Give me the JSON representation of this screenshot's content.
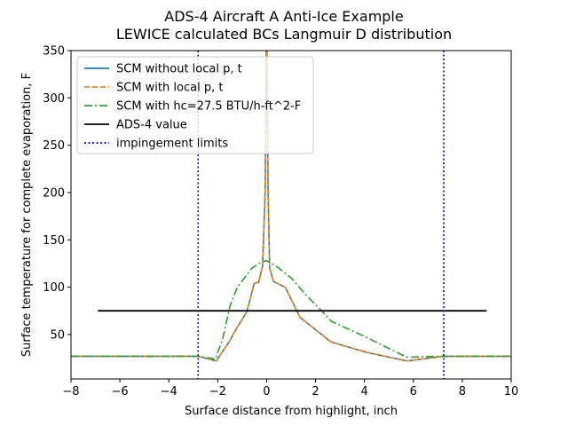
{
  "chart_data": {
    "type": "line",
    "title": "ADS-4 Aircraft A Anti-Ice Example",
    "subtitle": "LEWICE calculated BCs Langmuir D distribution",
    "xlabel": "Surface distance from highlight, inch",
    "ylabel": "Surface temperature for complete evaporation, F",
    "xlim": [
      -8,
      10
    ],
    "ylim": [
      3,
      350
    ],
    "xticks": [
      -8,
      -6,
      -4,
      -2,
      0,
      2,
      4,
      6,
      8,
      10
    ],
    "yticks": [
      50,
      100,
      150,
      200,
      250,
      300,
      350
    ],
    "grid": false,
    "legend_position": "top-left",
    "series": [
      {
        "name": "SCM without local p, t",
        "color": "#1f77b4",
        "style": "solid",
        "x": [
          -8,
          -2.8,
          -2.06,
          -1.54,
          -1.24,
          -0.81,
          -0.51,
          -0.33,
          -0.17,
          -0.06,
          0,
          0.06,
          0.12,
          0.28,
          0.76,
          1.37,
          2.64,
          4.1,
          5.73,
          7.24,
          10
        ],
        "y": [
          27,
          27,
          22,
          42,
          56,
          74,
          104,
          105,
          122,
          200,
          400,
          200,
          120,
          106,
          100,
          68,
          42,
          31,
          22,
          27,
          27
        ]
      },
      {
        "name": "SCM with local p, t",
        "color": "#ff7f0e",
        "style": "dashed",
        "x": [
          -8,
          -2.8,
          -2.06,
          -1.54,
          -1.24,
          -0.81,
          -0.51,
          -0.33,
          -0.17,
          -0.06,
          0,
          0.06,
          0.12,
          0.28,
          0.76,
          1.37,
          2.64,
          4.1,
          5.73,
          7.24,
          10
        ],
        "y": [
          27,
          27,
          22,
          42,
          56,
          74,
          104,
          105,
          122,
          200,
          400,
          200,
          120,
          106,
          100,
          68,
          42,
          31,
          22,
          27,
          27
        ]
      },
      {
        "name": "SCM with hc=27.5 BTU/h-ft^2-F",
        "color": "#2ca02c",
        "style": "dashdot",
        "x": [
          -8,
          -2.8,
          -2.1,
          -1.8,
          -1.5,
          -1.2,
          -0.6,
          -0.2,
          0,
          0.4,
          1.0,
          1.6,
          2.25,
          2.64,
          4.0,
          5.73,
          7.24,
          10
        ],
        "y": [
          27,
          27,
          24,
          45,
          80,
          100,
          120,
          127,
          128,
          122,
          110,
          92,
          75,
          64,
          48,
          26,
          27,
          27
        ]
      },
      {
        "name": "ADS-4 value",
        "color": "#000000",
        "style": "solid",
        "x": [
          -6.9,
          9.0
        ],
        "y": [
          75,
          75
        ]
      },
      {
        "name": "impingement limits",
        "color": "#0000ff",
        "style": "dotted",
        "vlines": [
          -2.8,
          7.24
        ]
      }
    ]
  }
}
